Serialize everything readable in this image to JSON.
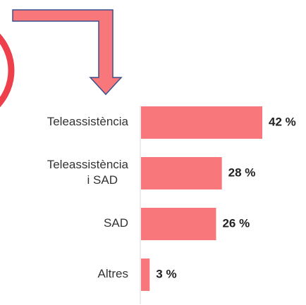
{
  "chart_data": {
    "type": "bar",
    "orientation": "horizontal",
    "categories": [
      "Teleassistència",
      "Teleassistència\ni SAD",
      "SAD",
      "Altres"
    ],
    "values": [
      42,
      28,
      26,
      3
    ],
    "value_labels": [
      "42 %",
      "28 %",
      "26 %",
      "3 %"
    ],
    "color": "#f8777b"
  }
}
